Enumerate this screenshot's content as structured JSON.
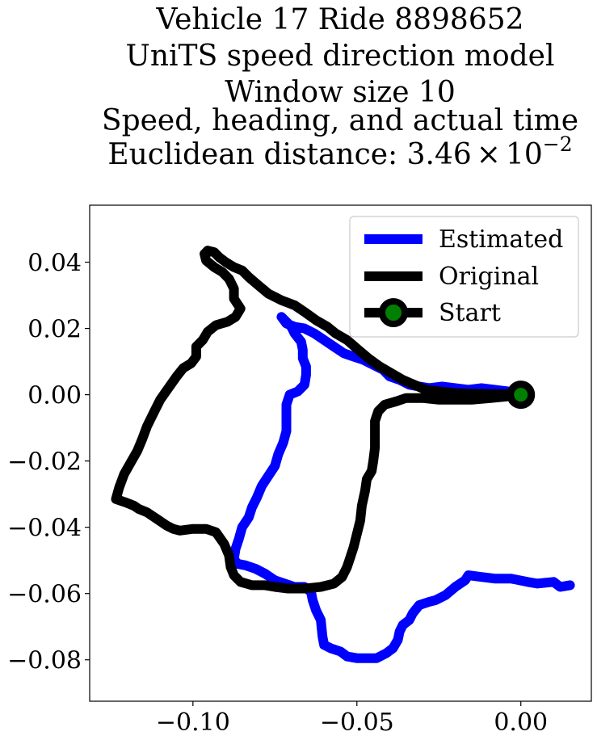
{
  "chart_data": {
    "type": "line",
    "title_lines": [
      "Vehicle 17 Ride 8898652",
      "UniTS speed direction model",
      "Window size 10",
      "Speed, heading, and actual time",
      "Euclidean distance: "
    ],
    "title_math": {
      "mantissa": "3.46",
      "times": "×",
      "base": "10",
      "exponent": "−2"
    },
    "xlabel": "",
    "ylabel": "",
    "xlim": [
      -0.1315,
      0.0215
    ],
    "ylim": [
      -0.0925,
      0.0572
    ],
    "xticks": [
      -0.1,
      -0.05,
      0.0
    ],
    "xtick_labels": [
      "−0.10",
      "−0.05",
      "0.00"
    ],
    "yticks": [
      0.04,
      0.02,
      0.0,
      -0.02,
      -0.04,
      -0.06,
      -0.08
    ],
    "ytick_labels": [
      "0.04",
      "0.02",
      "0.00",
      "−0.02",
      "−0.04",
      "−0.06",
      "−0.08"
    ],
    "grid": false,
    "legend_position": "top-right",
    "series": [
      {
        "name": "Estimated",
        "color": "#0000ff",
        "points": [
          [
            0.015,
            -0.0575
          ],
          [
            0.012,
            -0.058
          ],
          [
            0.01,
            -0.0565
          ],
          [
            0.005,
            -0.057
          ],
          [
            0.002,
            -0.0565
          ],
          [
            -0.003,
            -0.0555
          ],
          [
            -0.008,
            -0.0555
          ],
          [
            -0.012,
            -0.055
          ],
          [
            -0.016,
            -0.0545
          ],
          [
            -0.017,
            -0.056
          ],
          [
            -0.02,
            -0.058
          ],
          [
            -0.023,
            -0.0605
          ],
          [
            -0.026,
            -0.062
          ],
          [
            -0.028,
            -0.0625
          ],
          [
            -0.031,
            -0.0635
          ],
          [
            -0.033,
            -0.066
          ],
          [
            -0.034,
            -0.068
          ],
          [
            -0.036,
            -0.0695
          ],
          [
            -0.037,
            -0.0715
          ],
          [
            -0.0375,
            -0.074
          ],
          [
            -0.039,
            -0.0765
          ],
          [
            -0.041,
            -0.078
          ],
          [
            -0.042,
            -0.0785
          ],
          [
            -0.044,
            -0.0795
          ],
          [
            -0.047,
            -0.0795
          ],
          [
            -0.05,
            -0.0795
          ],
          [
            -0.053,
            -0.079
          ],
          [
            -0.055,
            -0.0775
          ],
          [
            -0.058,
            -0.0765
          ],
          [
            -0.06,
            -0.0755
          ],
          [
            -0.0605,
            -0.073
          ],
          [
            -0.061,
            -0.068
          ],
          [
            -0.0625,
            -0.065
          ],
          [
            -0.0635,
            -0.062
          ],
          [
            -0.064,
            -0.0595
          ],
          [
            -0.066,
            -0.058
          ],
          [
            -0.069,
            -0.058
          ],
          [
            -0.072,
            -0.057
          ],
          [
            -0.075,
            -0.056
          ],
          [
            -0.078,
            -0.054
          ],
          [
            -0.081,
            -0.0525
          ],
          [
            -0.084,
            -0.0515
          ],
          [
            -0.0865,
            -0.051
          ],
          [
            -0.0875,
            -0.0495
          ],
          [
            -0.087,
            -0.0465
          ],
          [
            -0.086,
            -0.0435
          ],
          [
            -0.085,
            -0.04
          ],
          [
            -0.083,
            -0.037
          ],
          [
            -0.082,
            -0.034
          ],
          [
            -0.0805,
            -0.031
          ],
          [
            -0.079,
            -0.0275
          ],
          [
            -0.077,
            -0.0245
          ],
          [
            -0.075,
            -0.0215
          ],
          [
            -0.074,
            -0.018
          ],
          [
            -0.0725,
            -0.0145
          ],
          [
            -0.0715,
            -0.011
          ],
          [
            -0.0715,
            -0.007
          ],
          [
            -0.0715,
            -0.003
          ],
          [
            -0.0705,
            0.0
          ],
          [
            -0.068,
            0.001
          ],
          [
            -0.066,
            0.003
          ],
          [
            -0.0655,
            0.006
          ],
          [
            -0.0655,
            0.0085
          ],
          [
            -0.0665,
            0.011
          ],
          [
            -0.0665,
            0.0135
          ],
          [
            -0.067,
            0.016
          ],
          [
            -0.069,
            0.0185
          ],
          [
            -0.07,
            0.0205
          ],
          [
            -0.072,
            0.0225
          ],
          [
            -0.073,
            0.0235
          ],
          [
            -0.0715,
            0.0215
          ],
          [
            -0.069,
            0.0205
          ],
          [
            -0.066,
            0.02
          ],
          [
            -0.063,
            0.0185
          ],
          [
            -0.06,
            0.0165
          ],
          [
            -0.057,
            0.0145
          ],
          [
            -0.054,
            0.0125
          ],
          [
            -0.051,
            0.0115
          ],
          [
            -0.048,
            0.0105
          ],
          [
            -0.045,
            0.009
          ],
          [
            -0.042,
            0.0075
          ],
          [
            -0.04,
            0.0055
          ],
          [
            -0.037,
            0.0045
          ],
          [
            -0.034,
            0.003
          ],
          [
            -0.031,
            0.0025
          ],
          [
            -0.028,
            0.002
          ],
          [
            -0.024,
            0.0025
          ],
          [
            -0.02,
            0.002
          ],
          [
            -0.016,
            0.0015
          ],
          [
            -0.012,
            0.002
          ],
          [
            -0.008,
            0.0015
          ],
          [
            -0.004,
            0.001
          ],
          [
            -0.002,
            0.0005
          ],
          [
            0.0,
            0.0
          ]
        ]
      },
      {
        "name": "Original",
        "color": "#000000",
        "points": [
          [
            0.0,
            0.0
          ],
          [
            -0.004,
            -0.0005
          ],
          [
            -0.009,
            -0.001
          ],
          [
            -0.015,
            -0.0015
          ],
          [
            -0.02,
            -0.0015
          ],
          [
            -0.025,
            -0.0015
          ],
          [
            -0.03,
            -0.001
          ],
          [
            -0.035,
            -0.001
          ],
          [
            -0.038,
            -0.002
          ],
          [
            -0.0415,
            -0.003
          ],
          [
            -0.0435,
            -0.005
          ],
          [
            -0.0445,
            -0.008
          ],
          [
            -0.0445,
            -0.012
          ],
          [
            -0.0445,
            -0.016
          ],
          [
            -0.045,
            -0.02
          ],
          [
            -0.0455,
            -0.023
          ],
          [
            -0.047,
            -0.0255
          ],
          [
            -0.0475,
            -0.029
          ],
          [
            -0.0485,
            -0.0335
          ],
          [
            -0.049,
            -0.038
          ],
          [
            -0.05,
            -0.042
          ],
          [
            -0.051,
            -0.046
          ],
          [
            -0.052,
            -0.049
          ],
          [
            -0.053,
            -0.052
          ],
          [
            -0.0545,
            -0.055
          ],
          [
            -0.057,
            -0.057
          ],
          [
            -0.061,
            -0.058
          ],
          [
            -0.066,
            -0.0585
          ],
          [
            -0.071,
            -0.0585
          ],
          [
            -0.075,
            -0.058
          ],
          [
            -0.078,
            -0.0575
          ],
          [
            -0.082,
            -0.0575
          ],
          [
            -0.0855,
            -0.0565
          ],
          [
            -0.0875,
            -0.0545
          ],
          [
            -0.0885,
            -0.052
          ],
          [
            -0.089,
            -0.0485
          ],
          [
            -0.0905,
            -0.045
          ],
          [
            -0.093,
            -0.0415
          ],
          [
            -0.096,
            -0.0405
          ],
          [
            -0.1,
            -0.0405
          ],
          [
            -0.104,
            -0.041
          ],
          [
            -0.106,
            -0.0405
          ],
          [
            -0.108,
            -0.0395
          ],
          [
            -0.111,
            -0.0375
          ],
          [
            -0.114,
            -0.0355
          ],
          [
            -0.1165,
            -0.0345
          ],
          [
            -0.118,
            -0.0335
          ],
          [
            -0.1205,
            -0.0325
          ],
          [
            -0.1235,
            -0.0315
          ],
          [
            -0.1225,
            -0.028
          ],
          [
            -0.121,
            -0.024
          ],
          [
            -0.119,
            -0.0205
          ],
          [
            -0.117,
            -0.017
          ],
          [
            -0.1155,
            -0.0135
          ],
          [
            -0.114,
            -0.0095
          ],
          [
            -0.112,
            -0.0055
          ],
          [
            -0.11,
            -0.0015
          ],
          [
            -0.1075,
            0.002
          ],
          [
            -0.105,
            0.0055
          ],
          [
            -0.103,
            0.008
          ],
          [
            -0.1005,
            0.0095
          ],
          [
            -0.099,
            0.0115
          ],
          [
            -0.099,
            0.0145
          ],
          [
            -0.097,
            0.0165
          ],
          [
            -0.0955,
            0.019
          ],
          [
            -0.093,
            0.021
          ],
          [
            -0.0895,
            0.022
          ],
          [
            -0.087,
            0.0235
          ],
          [
            -0.0855,
            0.026
          ],
          [
            -0.0875,
            0.029
          ],
          [
            -0.0875,
            0.032
          ],
          [
            -0.089,
            0.035
          ],
          [
            -0.091,
            0.037
          ],
          [
            -0.0935,
            0.0385
          ],
          [
            -0.096,
            0.0405
          ],
          [
            -0.0965,
            0.0425
          ],
          [
            -0.0955,
            0.0435
          ],
          [
            -0.0935,
            0.043
          ],
          [
            -0.092,
            0.0415
          ],
          [
            -0.09,
            0.04
          ],
          [
            -0.0875,
            0.0385
          ],
          [
            -0.085,
            0.0375
          ],
          [
            -0.083,
            0.0355
          ],
          [
            -0.08,
            0.033
          ],
          [
            -0.077,
            0.0305
          ],
          [
            -0.073,
            0.0285
          ],
          [
            -0.069,
            0.027
          ],
          [
            -0.066,
            0.025
          ],
          [
            -0.0625,
            0.0225
          ],
          [
            -0.059,
            0.0205
          ],
          [
            -0.0565,
            0.0185
          ],
          [
            -0.053,
            0.0165
          ],
          [
            -0.0495,
            0.0135
          ],
          [
            -0.0465,
            0.011
          ],
          [
            -0.043,
            0.0085
          ],
          [
            -0.0395,
            0.0065
          ],
          [
            -0.036,
            0.0045
          ],
          [
            -0.0325,
            0.003
          ],
          [
            -0.029,
            0.0015
          ],
          [
            -0.025,
            0.001
          ],
          [
            -0.02,
            0.0005
          ],
          [
            -0.015,
            0.0003
          ],
          [
            -0.009,
            0.0002
          ],
          [
            -0.004,
            0.0001
          ],
          [
            0.0,
            0.0
          ]
        ]
      },
      {
        "name": "Start",
        "marker": "circle",
        "color": "#000000",
        "marker_face": "#008000",
        "points": [
          [
            0.0,
            0.0
          ]
        ]
      }
    ],
    "legend": [
      {
        "label": "Estimated",
        "color": "#0000ff",
        "marker": "none"
      },
      {
        "label": "Original",
        "color": "#000000",
        "marker": "none"
      },
      {
        "label": "Start",
        "color": "#000000",
        "marker": "circle",
        "marker_face": "#008000"
      }
    ]
  }
}
